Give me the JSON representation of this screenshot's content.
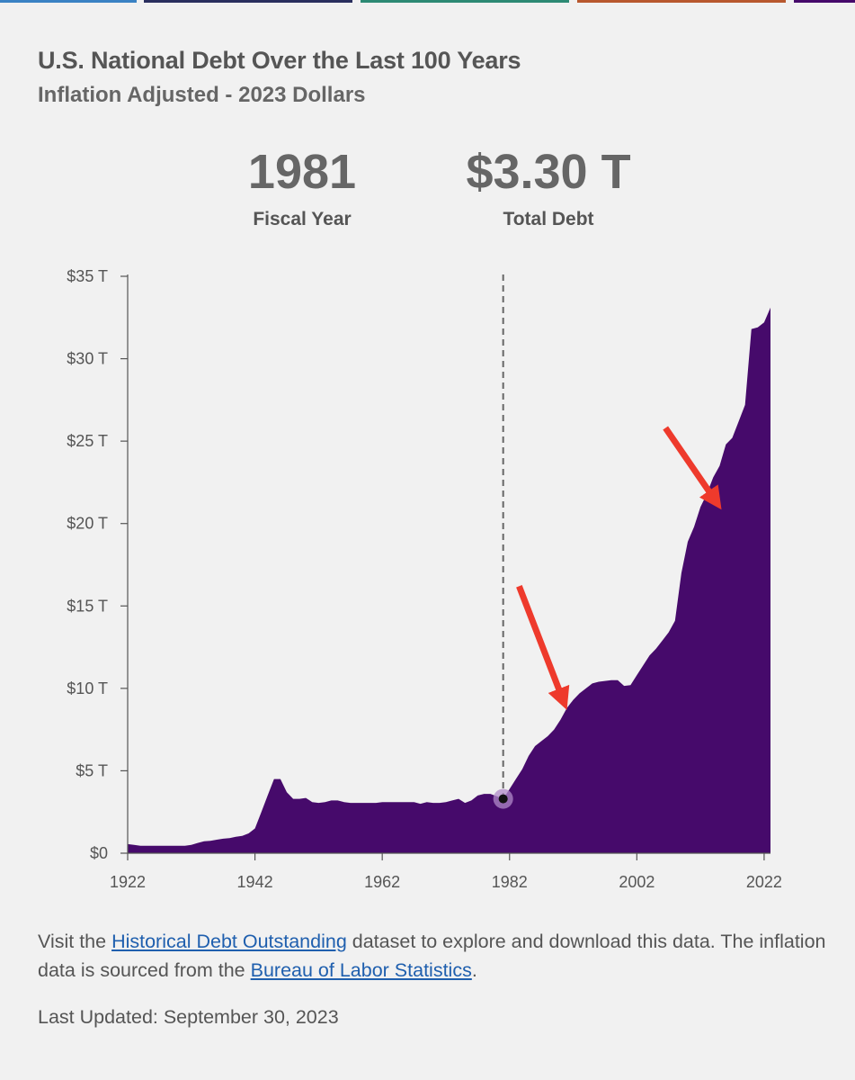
{
  "colors": {
    "area": "#460a6b",
    "annotation_arrow": "#ee3a2c",
    "link": "#1f5fae",
    "top_bars": [
      "#3a82c4",
      "#2a2f5e",
      "#2d8a74",
      "#b8582e",
      "#460a6b"
    ]
  },
  "header": {
    "title": "U.S. National Debt Over the Last 100 Years",
    "subtitle": "Inflation Adjusted - 2023 Dollars"
  },
  "stats": {
    "year_value": "1981",
    "year_label": "Fiscal Year",
    "debt_value": "$3.30 T",
    "debt_label": "Total Debt"
  },
  "chart_data": {
    "type": "area",
    "x_unit": "fiscal year",
    "y_unit": "trillions of 2023 dollars",
    "xlim": [
      1922,
      2023
    ],
    "ylim": [
      0,
      35
    ],
    "x_ticks": [
      1922,
      1942,
      1962,
      1982,
      2002,
      2022
    ],
    "y_ticks": [
      0,
      5,
      10,
      15,
      20,
      25,
      30,
      35
    ],
    "x_tick_labels": [
      "1922",
      "1942",
      "1962",
      "1982",
      "2002",
      "2022"
    ],
    "y_tick_labels": [
      "$0",
      "$5 T",
      "$10 T",
      "$15 T",
      "$20 T",
      "$25 T",
      "$30 T",
      "$35 T"
    ],
    "grid": false,
    "highlight": {
      "x": 1981,
      "y": 3.3
    },
    "x": [
      1922,
      1923,
      1924,
      1926,
      1928,
      1930,
      1931,
      1932,
      1933,
      1934,
      1935,
      1936,
      1937,
      1938,
      1939,
      1940,
      1941,
      1942,
      1943,
      1944,
      1945,
      1946,
      1947,
      1948,
      1949,
      1950,
      1951,
      1952,
      1953,
      1954,
      1955,
      1956,
      1957,
      1958,
      1959,
      1960,
      1961,
      1962,
      1963,
      1964,
      1965,
      1966,
      1967,
      1968,
      1969,
      1970,
      1971,
      1972,
      1973,
      1974,
      1975,
      1976,
      1977,
      1978,
      1979,
      1980,
      1981,
      1982,
      1983,
      1984,
      1985,
      1986,
      1987,
      1988,
      1989,
      1990,
      1991,
      1992,
      1993,
      1994,
      1995,
      1996,
      1997,
      1998,
      1999,
      2000,
      2001,
      2002,
      2003,
      2004,
      2005,
      2006,
      2007,
      2008,
      2009,
      2010,
      2011,
      2012,
      2013,
      2014,
      2015,
      2016,
      2017,
      2018,
      2019,
      2020,
      2021,
      2022,
      2023
    ],
    "y": [
      0.55,
      0.5,
      0.45,
      0.45,
      0.45,
      0.45,
      0.45,
      0.5,
      0.62,
      0.72,
      0.75,
      0.82,
      0.88,
      0.92,
      1.0,
      1.05,
      1.2,
      1.5,
      2.5,
      3.5,
      4.5,
      4.5,
      3.7,
      3.3,
      3.3,
      3.35,
      3.1,
      3.05,
      3.1,
      3.2,
      3.2,
      3.1,
      3.05,
      3.05,
      3.05,
      3.05,
      3.05,
      3.1,
      3.1,
      3.1,
      3.1,
      3.1,
      3.1,
      3.0,
      3.1,
      3.05,
      3.05,
      3.1,
      3.2,
      3.3,
      3.05,
      3.2,
      3.5,
      3.6,
      3.6,
      3.45,
      3.3,
      3.9,
      4.5,
      5.1,
      5.9,
      6.5,
      6.8,
      7.1,
      7.5,
      8.1,
      8.8,
      9.3,
      9.7,
      10.0,
      10.3,
      10.4,
      10.45,
      10.5,
      10.5,
      10.15,
      10.2,
      10.8,
      11.4,
      12.0,
      12.4,
      12.9,
      13.4,
      14.1,
      17.0,
      18.9,
      19.8,
      21.0,
      21.8,
      22.8,
      23.5,
      24.8,
      25.2,
      26.2,
      27.2,
      31.8,
      31.9,
      32.2,
      33.1
    ],
    "annotations": [
      {
        "type": "arrow",
        "from": [
          1983.5,
          16.2
        ],
        "to": [
          1990.5,
          9.2
        ]
      },
      {
        "type": "arrow",
        "from": [
          2006.5,
          25.8
        ],
        "to": [
          2014.5,
          21.3
        ]
      }
    ]
  },
  "footer": {
    "text_before_link1": "Visit the ",
    "link1": "Historical Debt Outstanding",
    "text_between": " dataset to explore and download this data. The inflation data is sourced from the ",
    "link2": "Bureau of Labor Statistics",
    "text_after": ".",
    "updated": "Last Updated: September 30, 2023"
  }
}
